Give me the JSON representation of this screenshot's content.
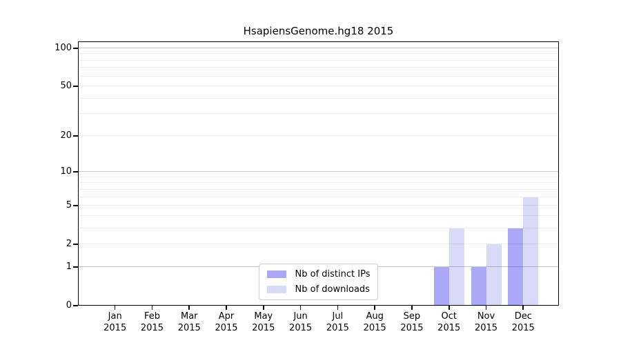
{
  "chart_data": {
    "type": "bar",
    "title": "HsapiensGenome.hg18 2015",
    "categories": [
      {
        "month": "Jan",
        "year": "2015"
      },
      {
        "month": "Feb",
        "year": "2015"
      },
      {
        "month": "Mar",
        "year": "2015"
      },
      {
        "month": "Apr",
        "year": "2015"
      },
      {
        "month": "May",
        "year": "2015"
      },
      {
        "month": "Jun",
        "year": "2015"
      },
      {
        "month": "Jul",
        "year": "2015"
      },
      {
        "month": "Aug",
        "year": "2015"
      },
      {
        "month": "Sep",
        "year": "2015"
      },
      {
        "month": "Oct",
        "year": "2015"
      },
      {
        "month": "Nov",
        "year": "2015"
      },
      {
        "month": "Dec",
        "year": "2015"
      }
    ],
    "series": [
      {
        "name": "Nb of distinct IPs",
        "key": "distinct-ips",
        "color": "#a9a9f8",
        "values": [
          0,
          0,
          0,
          0,
          0,
          0,
          0,
          0,
          0,
          1,
          1,
          3
        ]
      },
      {
        "name": "Nb of downloads",
        "key": "downloads",
        "color": "#d9d9f8",
        "values": [
          0,
          0,
          0,
          0,
          0,
          0,
          0,
          0,
          0,
          3,
          2,
          6
        ]
      }
    ],
    "y_axis": {
      "scale": "log1p",
      "top_value": 113,
      "ticks": [
        {
          "label": "0",
          "value": 0
        },
        {
          "label": "1",
          "value": 1
        },
        {
          "label": "2",
          "value": 2
        },
        {
          "label": "5",
          "value": 5
        },
        {
          "label": "10",
          "value": 10
        },
        {
          "label": "20",
          "value": 20
        },
        {
          "label": "50",
          "value": 50
        },
        {
          "label": "100",
          "value": 100
        }
      ],
      "gridlines_minor": [
        2,
        3,
        4,
        5,
        6,
        7,
        8,
        9,
        20,
        30,
        40,
        50,
        60,
        70,
        80,
        90
      ],
      "gridlines_major": [
        1,
        10,
        100
      ]
    },
    "legend_position": "lower center",
    "colors": {
      "minor_grid": "rgba(0,0,0,0.07)",
      "major_grid": "rgba(0,0,0,0.22)",
      "axis": "#000000",
      "background": "#ffffff"
    }
  }
}
